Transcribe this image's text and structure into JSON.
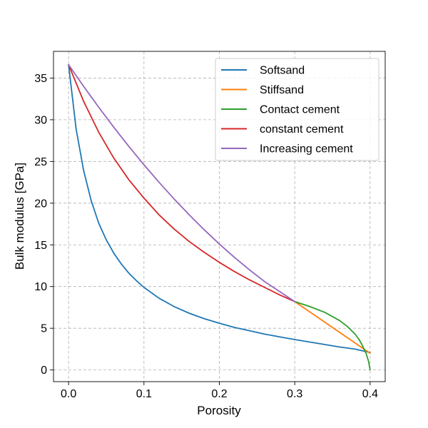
{
  "chart_data": {
    "type": "line",
    "title": "",
    "xlabel": "Porosity",
    "ylabel": "Bulk modulus [GPa]",
    "xlim": [
      -0.02,
      0.42
    ],
    "ylim": [
      -1.4,
      38.2
    ],
    "xticks": [
      0.0,
      0.1,
      0.2,
      0.3,
      0.4
    ],
    "xtick_labels": [
      "0.0",
      "0.1",
      "0.2",
      "0.3",
      "0.4"
    ],
    "yticks": [
      0,
      5,
      10,
      15,
      20,
      25,
      30,
      35
    ],
    "ytick_labels": [
      "0",
      "5",
      "10",
      "15",
      "20",
      "25",
      "30",
      "35"
    ],
    "grid": true,
    "legend_position": "top-right",
    "series": [
      {
        "name": "Softsand",
        "color": "#1f77b4",
        "x": [
          0.0,
          0.01,
          0.02,
          0.03,
          0.04,
          0.05,
          0.06,
          0.07,
          0.08,
          0.09,
          0.1,
          0.12,
          0.14,
          0.16,
          0.18,
          0.2,
          0.22,
          0.24,
          0.26,
          0.28,
          0.3,
          0.32,
          0.34,
          0.36,
          0.38,
          0.4
        ],
        "y": [
          36.6,
          28.9,
          23.9,
          20.3,
          17.6,
          15.6,
          14.0,
          12.7,
          11.6,
          10.7,
          9.9,
          8.6,
          7.6,
          6.8,
          6.15,
          5.6,
          5.1,
          4.7,
          4.3,
          3.97,
          3.65,
          3.35,
          3.05,
          2.75,
          2.5,
          2.1
        ]
      },
      {
        "name": "Stiffsand",
        "color": "#ff7f0e",
        "x": [
          0.3,
          0.4
        ],
        "y": [
          8.2,
          2.0
        ]
      },
      {
        "name": "Contact cement",
        "color": "#2ca02c",
        "x": [
          0.3,
          0.32,
          0.34,
          0.36,
          0.37,
          0.38,
          0.385,
          0.39,
          0.395,
          0.398,
          0.4
        ],
        "y": [
          8.2,
          7.6,
          6.9,
          5.9,
          5.2,
          4.3,
          3.7,
          2.9,
          1.9,
          1.0,
          0.0
        ]
      },
      {
        "name": "constant cement",
        "color": "#d62728",
        "x": [
          0.0,
          0.02,
          0.04,
          0.06,
          0.08,
          0.1,
          0.12,
          0.14,
          0.16,
          0.18,
          0.2,
          0.22,
          0.24,
          0.26,
          0.28,
          0.3
        ],
        "y": [
          36.6,
          32.2,
          28.5,
          25.4,
          22.8,
          20.6,
          18.6,
          16.9,
          15.4,
          14.1,
          12.9,
          11.8,
          10.8,
          9.9,
          9.0,
          8.2
        ]
      },
      {
        "name": "Increasing cement",
        "color": "#9467bd",
        "x": [
          0.0,
          0.02,
          0.04,
          0.06,
          0.08,
          0.1,
          0.12,
          0.14,
          0.16,
          0.18,
          0.2,
          0.22,
          0.24,
          0.26,
          0.28,
          0.3
        ],
        "y": [
          36.6,
          34.0,
          31.5,
          29.1,
          26.8,
          24.6,
          22.5,
          20.5,
          18.6,
          16.8,
          15.1,
          13.5,
          12.0,
          10.6,
          9.4,
          8.2
        ]
      }
    ]
  }
}
